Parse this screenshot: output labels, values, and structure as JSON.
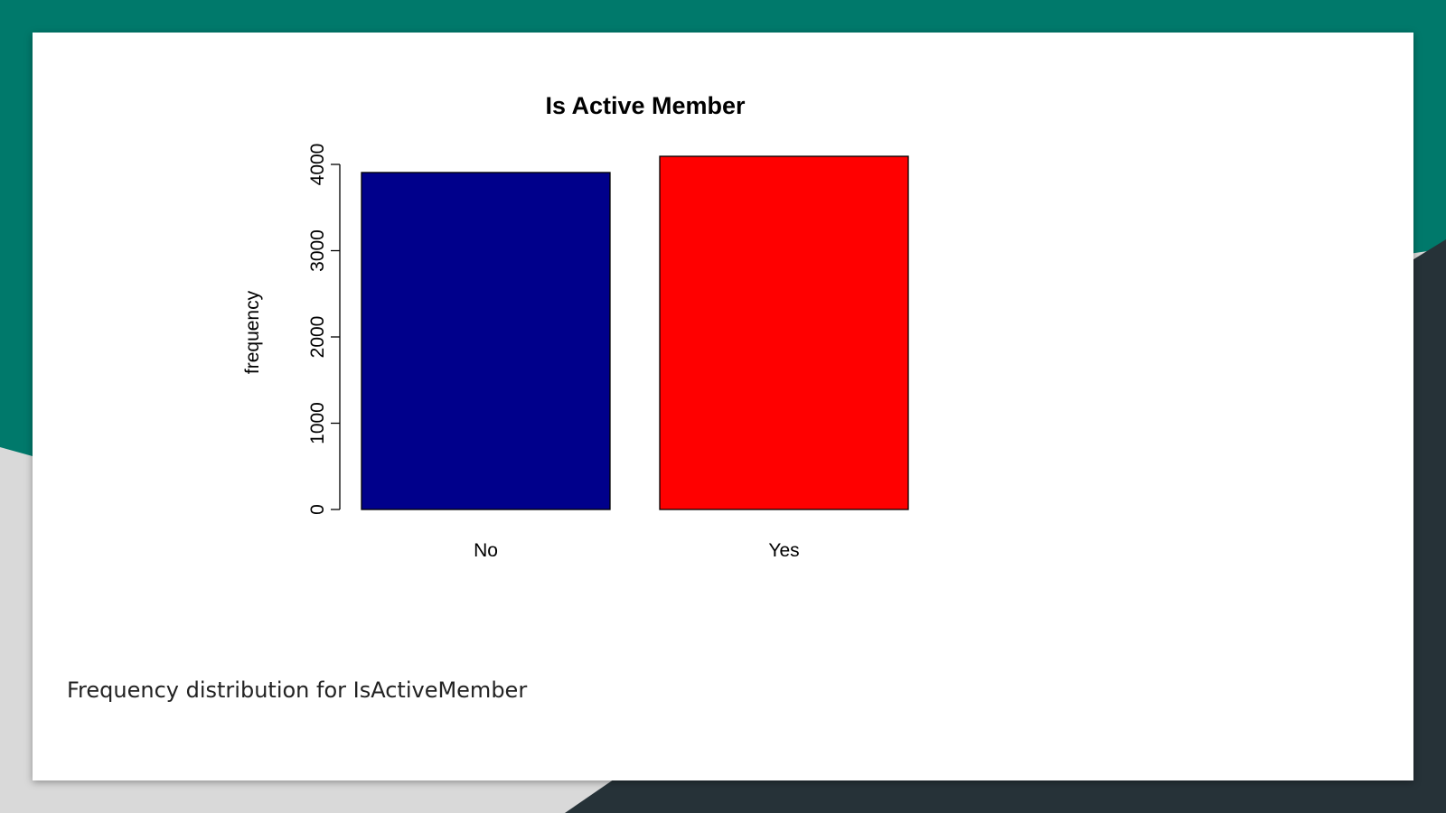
{
  "theme": {
    "teal": "#00796b",
    "dark": "#263238",
    "light_gray": "#d9d9d9",
    "card": "#ffffff"
  },
  "slide": {
    "caption": "Frequency distribution for IsActiveMember"
  },
  "chart_data": {
    "type": "bar",
    "title": "Is Active Member",
    "xlabel": "",
    "ylabel": "frequency",
    "categories": [
      "No",
      "Yes"
    ],
    "values": [
      3906,
      4094
    ],
    "colors": [
      "#00008b",
      "#ff0000"
    ],
    "ylim": [
      0,
      4000
    ],
    "yticks": [
      0,
      1000,
      2000,
      3000,
      4000
    ],
    "ytick_labels": [
      "0",
      "1000",
      "2000",
      "3000",
      "4000"
    ],
    "grid": false,
    "legend": "none"
  }
}
